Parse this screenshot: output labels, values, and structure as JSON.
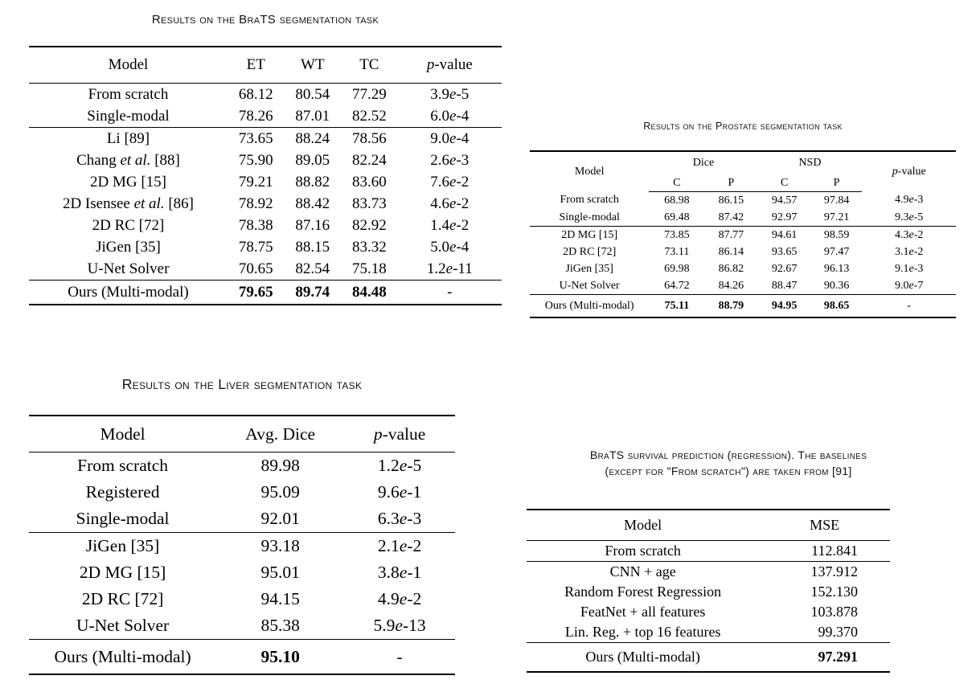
{
  "tables": {
    "brats": {
      "title": "Results on the BraTS segmentation task",
      "columns": [
        "Model",
        "ET",
        "WT",
        "TC",
        "p-value"
      ],
      "rows": [
        {
          "cells": [
            "From scratch",
            "68.12",
            "80.54",
            "77.29",
            "3.9e-5"
          ]
        },
        {
          "cells": [
            "Single-modal",
            "78.26",
            "87.01",
            "82.52",
            "6.0e-4"
          ]
        },
        {
          "cells": [
            "Li [89]",
            "73.65",
            "88.24",
            "78.56",
            "9.0e-4"
          ],
          "group_start": true
        },
        {
          "cells": [
            "Chang et al. [88]",
            "75.90",
            "89.05",
            "82.24",
            "2.6e-3"
          ]
        },
        {
          "cells": [
            "2D MG [15]",
            "79.21",
            "88.82",
            "83.60",
            "7.6e-2"
          ]
        },
        {
          "cells": [
            "2D Isensee et al. [86]",
            "78.92",
            "88.42",
            "83.73",
            "4.6e-2"
          ]
        },
        {
          "cells": [
            "2D RC [72]",
            "78.38",
            "87.16",
            "82.92",
            "1.4e-2"
          ]
        },
        {
          "cells": [
            "JiGen [35]",
            "78.75",
            "88.15",
            "83.32",
            "5.0e-4"
          ]
        },
        {
          "cells": [
            "U-Net Solver",
            "70.65",
            "82.54",
            "75.18",
            "1.2e-11"
          ]
        },
        {
          "cells": [
            "Ours (Multi-modal)",
            "79.65",
            "89.74",
            "84.48",
            "-"
          ],
          "group_start": true,
          "ours": true,
          "bold": [
            1,
            2,
            3
          ]
        }
      ]
    },
    "prostate": {
      "title": "Results on the Prostate segmentation task",
      "header": {
        "model": "Model",
        "dice": "Dice",
        "nsd": "NSD",
        "sub": [
          "C",
          "P",
          "C",
          "P"
        ],
        "pvalue": "p-value"
      },
      "rows": [
        {
          "cells": [
            "From scratch",
            "68.98",
            "86.15",
            "94.57",
            "97.84",
            "4.9e-3"
          ]
        },
        {
          "cells": [
            "Single-modal",
            "69.48",
            "87.42",
            "92.97",
            "97.21",
            "9.3e-5"
          ]
        },
        {
          "cells": [
            "2D MG [15]",
            "73.85",
            "87.77",
            "94.61",
            "98.59",
            "4.3e-2"
          ],
          "group_start": true
        },
        {
          "cells": [
            "2D RC [72]",
            "73.11",
            "86.14",
            "93.65",
            "97.47",
            "3.1e-2"
          ]
        },
        {
          "cells": [
            "JiGen [35]",
            "69.98",
            "86.82",
            "92.67",
            "96.13",
            "9.1e-3"
          ]
        },
        {
          "cells": [
            "U-Net Solver",
            "64.72",
            "84.26",
            "88.47",
            "90.36",
            "9.0e-7"
          ]
        },
        {
          "cells": [
            "Ours (Multi-modal)",
            "75.11",
            "88.79",
            "94.95",
            "98.65",
            "-"
          ],
          "group_start": true,
          "ours": true,
          "bold": [
            1,
            2,
            3,
            4
          ]
        }
      ]
    },
    "liver": {
      "title": "Results on the Liver segmentation task",
      "columns": [
        "Model",
        "Avg. Dice",
        "p-value"
      ],
      "rows": [
        {
          "cells": [
            "From scratch",
            "89.98",
            "1.2e-5"
          ]
        },
        {
          "cells": [
            "Registered",
            "95.09",
            "9.6e-1"
          ]
        },
        {
          "cells": [
            "Single-modal",
            "92.01",
            "6.3e-3"
          ]
        },
        {
          "cells": [
            "JiGen [35]",
            "93.18",
            "2.1e-2"
          ],
          "group_start": true
        },
        {
          "cells": [
            "2D MG [15]",
            "95.01",
            "3.8e-1"
          ]
        },
        {
          "cells": [
            "2D RC [72]",
            "94.15",
            "4.9e-2"
          ]
        },
        {
          "cells": [
            "U-Net Solver",
            "85.38",
            "5.9e-13"
          ]
        },
        {
          "cells": [
            "Ours (Multi-modal)",
            "95.10",
            "-"
          ],
          "group_start": true,
          "ours": true,
          "bold": [
            1
          ]
        }
      ]
    },
    "survival": {
      "title_lines": [
        "BraTS survival prediction (regression). The baselines",
        "(except for \"From scratch\") are taken from [91]"
      ],
      "columns": [
        "Model",
        "MSE"
      ],
      "rows": [
        {
          "cells": [
            "From scratch",
            "112.841"
          ]
        },
        {
          "cells": [
            "CNN + age",
            "137.912"
          ],
          "group_start": true
        },
        {
          "cells": [
            "Random Forest Regression",
            "152.130"
          ]
        },
        {
          "cells": [
            "FeatNet + all features",
            "103.878"
          ]
        },
        {
          "cells": [
            "Lin. Reg. + top 16 features",
            "99.370"
          ]
        },
        {
          "cells": [
            "Ours (Multi-modal)",
            "97.291"
          ],
          "group_start": true,
          "ours": true,
          "bold": [
            1
          ]
        }
      ]
    }
  }
}
